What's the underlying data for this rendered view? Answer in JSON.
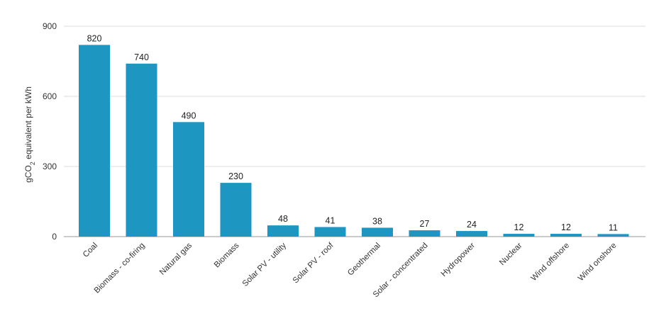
{
  "chart_data": {
    "type": "bar",
    "categories": [
      "Coal",
      "Biomass - co-firing",
      "Natural gas",
      "Biomass",
      "Solar PV - utility",
      "Solar PV - roof",
      "Geothermal",
      "Solar - concentrated",
      "Hydropower",
      "Nuclear",
      "Wind offshore",
      "Wind onshore"
    ],
    "values": [
      820,
      740,
      490,
      230,
      48,
      41,
      38,
      27,
      24,
      12,
      12,
      11
    ],
    "data_labels": [
      "820",
      "740",
      "490",
      "230",
      "48",
      "41",
      "38",
      "27",
      "24",
      "12",
      "12",
      "11"
    ],
    "ylabel": {
      "prefix": "gCO",
      "subscript": "2",
      "suffix": " equivalent per kWh"
    },
    "ylim": [
      0,
      900
    ],
    "yticks": [
      0,
      300,
      600,
      900
    ],
    "ytick_labels": [
      "0",
      "300",
      "600",
      "900"
    ],
    "grid": true,
    "legend": "none",
    "colors": {
      "bar": "#1d96c1",
      "grid": "#dddddd",
      "axis": "#999999"
    }
  }
}
